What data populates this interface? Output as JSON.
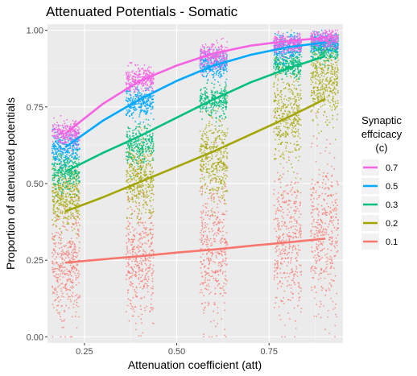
{
  "chart_data": {
    "type": "scatter",
    "title": "Attenuated Potentials - Somatic",
    "xlabel": "Attenuation coefficient (att)",
    "ylabel": "Proportion of attenuated potentials",
    "xlim": [
      0.15,
      0.95
    ],
    "ylim": [
      -0.02,
      1.02
    ],
    "x_ticks": [
      0.25,
      0.5,
      0.75
    ],
    "x_tick_labels": [
      "0.25",
      "0.50",
      "0.75"
    ],
    "y_ticks": [
      0,
      0.25,
      0.5,
      0.75,
      1.0
    ],
    "y_tick_labels": [
      "0.00",
      "0.25",
      "0.50",
      "0.75",
      "1.00"
    ],
    "grid": true,
    "legend": {
      "title_lines": [
        "Synaptic",
        "effcicacy",
        "(c)"
      ],
      "placement": "right"
    },
    "x_groups": [
      0.2,
      0.4,
      0.6,
      0.8,
      0.9
    ],
    "series": [
      {
        "name": "0.7",
        "color": "#F564E3",
        "fit_x": [
          0.2,
          0.3,
          0.4,
          0.5,
          0.6,
          0.7,
          0.8,
          0.9
        ],
        "fit_y": [
          0.665,
          0.76,
          0.835,
          0.885,
          0.925,
          0.95,
          0.965,
          0.975
        ],
        "cluster_center": [
          0.665,
          0.84,
          0.915,
          0.955,
          0.97
        ],
        "cluster_spread": [
          0.02,
          0.02,
          0.02,
          0.015,
          0.015
        ]
      },
      {
        "name": "0.5",
        "color": "#00A9FF",
        "fit_x": [
          0.2,
          0.3,
          0.4,
          0.5,
          0.6,
          0.7,
          0.8,
          0.9
        ],
        "fit_y": [
          0.62,
          0.705,
          0.775,
          0.835,
          0.885,
          0.92,
          0.945,
          0.96
        ],
        "cluster_center": [
          0.615,
          0.765,
          0.89,
          0.945,
          0.96
        ],
        "cluster_spread": [
          0.025,
          0.025,
          0.02,
          0.02,
          0.015
        ]
      },
      {
        "name": "0.3",
        "color": "#00BF7D",
        "fit_x": [
          0.2,
          0.3,
          0.4,
          0.5,
          0.6,
          0.7,
          0.8,
          0.9
        ],
        "fit_y": [
          0.54,
          0.6,
          0.655,
          0.715,
          0.775,
          0.83,
          0.875,
          0.915
        ],
        "cluster_center": [
          0.535,
          0.625,
          0.77,
          0.885,
          0.94
        ],
        "cluster_spread": [
          0.03,
          0.03,
          0.025,
          0.02,
          0.02
        ]
      },
      {
        "name": "0.2",
        "color": "#A3A500",
        "fit_x": [
          0.2,
          0.3,
          0.4,
          0.5,
          0.6,
          0.7,
          0.8,
          0.9
        ],
        "fit_y": [
          0.41,
          0.455,
          0.505,
          0.555,
          0.605,
          0.66,
          0.715,
          0.775
        ],
        "cluster_center": [
          0.46,
          0.51,
          0.585,
          0.72,
          0.83
        ],
        "cluster_spread": [
          0.05,
          0.06,
          0.07,
          0.08,
          0.06
        ]
      },
      {
        "name": "0.1",
        "color": "#F8766D",
        "fit_x": [
          0.2,
          0.3,
          0.4,
          0.5,
          0.6,
          0.7,
          0.8,
          0.9
        ],
        "fit_y": [
          0.242,
          0.253,
          0.263,
          0.275,
          0.285,
          0.297,
          0.308,
          0.32
        ],
        "cluster_center": [
          0.24,
          0.255,
          0.285,
          0.31,
          0.345
        ],
        "cluster_spread": [
          0.09,
          0.1,
          0.11,
          0.12,
          0.12
        ]
      }
    ]
  }
}
